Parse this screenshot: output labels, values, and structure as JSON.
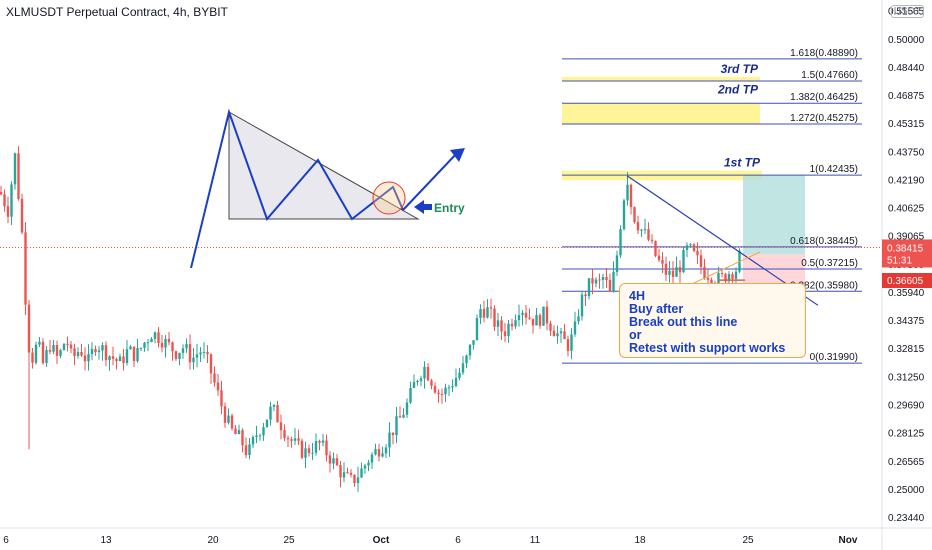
{
  "chart_data": {
    "type": "candlestick",
    "title": "XLMUSDT Perpetual Contract, 4h, BYBIT",
    "currency": "USDT",
    "ylim": [
      0.2283,
      0.5216
    ],
    "price_ticks": [
      "0.51565",
      "0.50000",
      "0.48440",
      "0.46875",
      "0.45315",
      "0.43750",
      "0.42190",
      "0.40625",
      "0.39065",
      "0.37500",
      "0.35940",
      "0.34375",
      "0.32815",
      "0.31250",
      "0.29690",
      "0.28125",
      "0.26565",
      "0.25000",
      "0.23440"
    ],
    "x_ticks": [
      {
        "label": "6",
        "x": 6
      },
      {
        "label": "13",
        "x": 106
      },
      {
        "label": "20",
        "x": 213
      },
      {
        "label": "25",
        "x": 289
      },
      {
        "label": "Oct",
        "x": 381
      },
      {
        "label": "6",
        "x": 458
      },
      {
        "label": "11",
        "x": 535
      },
      {
        "label": "18",
        "x": 640
      },
      {
        "label": "25",
        "x": 748
      },
      {
        "label": "Nov",
        "x": 848
      }
    ],
    "price_anchors": [
      [
        0,
        0.415
      ],
      [
        8,
        0.405
      ],
      [
        15,
        0.435
      ],
      [
        22,
        0.392
      ],
      [
        28,
        0.331
      ],
      [
        33,
        0.322
      ],
      [
        38,
        0.333
      ],
      [
        42,
        0.318
      ],
      [
        50,
        0.33
      ],
      [
        58,
        0.322
      ],
      [
        66,
        0.334
      ],
      [
        72,
        0.322
      ],
      [
        80,
        0.328
      ],
      [
        88,
        0.32
      ],
      [
        96,
        0.331
      ],
      [
        104,
        0.327
      ],
      [
        112,
        0.323
      ],
      [
        120,
        0.32
      ],
      [
        128,
        0.327
      ],
      [
        136,
        0.324
      ],
      [
        144,
        0.331
      ],
      [
        152,
        0.337
      ],
      [
        160,
        0.334
      ],
      [
        168,
        0.33
      ],
      [
        176,
        0.326
      ],
      [
        184,
        0.329
      ],
      [
        192,
        0.322
      ],
      [
        200,
        0.327
      ],
      [
        208,
        0.32
      ],
      [
        216,
        0.306
      ],
      [
        224,
        0.292
      ],
      [
        232,
        0.282
      ],
      [
        240,
        0.278
      ],
      [
        248,
        0.269
      ],
      [
        256,
        0.28
      ],
      [
        264,
        0.287
      ],
      [
        272,
        0.295
      ],
      [
        280,
        0.287
      ],
      [
        288,
        0.279
      ],
      [
        296,
        0.274
      ],
      [
        304,
        0.27
      ],
      [
        312,
        0.273
      ],
      [
        320,
        0.275
      ],
      [
        328,
        0.269
      ],
      [
        336,
        0.263
      ],
      [
        344,
        0.257
      ],
      [
        352,
        0.254
      ],
      [
        360,
        0.259
      ],
      [
        368,
        0.266
      ],
      [
        376,
        0.271
      ],
      [
        384,
        0.275
      ],
      [
        392,
        0.282
      ],
      [
        400,
        0.289
      ],
      [
        408,
        0.298
      ],
      [
        416,
        0.311
      ],
      [
        424,
        0.318
      ],
      [
        432,
        0.31
      ],
      [
        440,
        0.302
      ],
      [
        448,
        0.306
      ],
      [
        456,
        0.312
      ],
      [
        464,
        0.318
      ],
      [
        472,
        0.331
      ],
      [
        480,
        0.35
      ],
      [
        488,
        0.349
      ],
      [
        496,
        0.341
      ],
      [
        504,
        0.337
      ],
      [
        512,
        0.344
      ],
      [
        520,
        0.352
      ],
      [
        528,
        0.346
      ],
      [
        536,
        0.343
      ],
      [
        544,
        0.347
      ],
      [
        552,
        0.34
      ],
      [
        560,
        0.334
      ],
      [
        568,
        0.33
      ],
      [
        574,
        0.336
      ],
      [
        580,
        0.353
      ],
      [
        586,
        0.36
      ],
      [
        592,
        0.366
      ],
      [
        598,
        0.363
      ],
      [
        604,
        0.368
      ],
      [
        610,
        0.358
      ],
      [
        616,
        0.375
      ],
      [
        622,
        0.405
      ],
      [
        627,
        0.424
      ],
      [
        632,
        0.404
      ],
      [
        640,
        0.395
      ],
      [
        648,
        0.389
      ],
      [
        656,
        0.379
      ],
      [
        664,
        0.371
      ],
      [
        672,
        0.368
      ],
      [
        680,
        0.374
      ],
      [
        688,
        0.384
      ],
      [
        696,
        0.378
      ],
      [
        704,
        0.371
      ],
      [
        712,
        0.368
      ],
      [
        720,
        0.366
      ],
      [
        728,
        0.37
      ],
      [
        736,
        0.372
      ],
      [
        742,
        0.384
      ]
    ],
    "last_price": {
      "price": 0.38415,
      "label": "0.38415",
      "countdown": "51:31",
      "color": "#ef5350"
    },
    "level_price": {
      "price": 0.36605,
      "label": "0.36605",
      "color": "#e53935"
    },
    "fib_levels": [
      {
        "ratio_label": "1.618(0.48890)",
        "price": 0.4889
      },
      {
        "ratio_label": "1.5(0.47660)",
        "price": 0.4766
      },
      {
        "ratio_label": "1.382(0.46425)",
        "price": 0.46425
      },
      {
        "ratio_label": "1.272(0.45275)",
        "price": 0.45275
      },
      {
        "ratio_label": "1(0.42435)",
        "price": 0.42435
      },
      {
        "ratio_label": "0.618(0.38445)",
        "price": 0.38445
      },
      {
        "ratio_label": "0.5(0.37215)",
        "price": 0.37215
      },
      {
        "ratio_label": "0.382(0.35980)",
        "price": 0.3598
      },
      {
        "ratio_label": "0(0.31990)",
        "price": 0.3199
      }
    ],
    "annotations": {
      "tp3": "3rd TP",
      "tp2": "2nd TP",
      "tp1": "1st TP",
      "entry": "Entry",
      "note_lines": [
        "4H",
        "Buy after",
        "Break out this line",
        "or",
        "Retest with support works"
      ]
    },
    "colors": {
      "up": "#26a69a",
      "down": "#ef5350",
      "fib": "#3f51b5",
      "highlight": "#fff176",
      "profit": "#b2dfdb",
      "loss": "#ffcdd2",
      "pattern": "#1a3fc4",
      "entry_arrow": "#1a3fc4",
      "entry_text": "#1b8c5a"
    }
  }
}
